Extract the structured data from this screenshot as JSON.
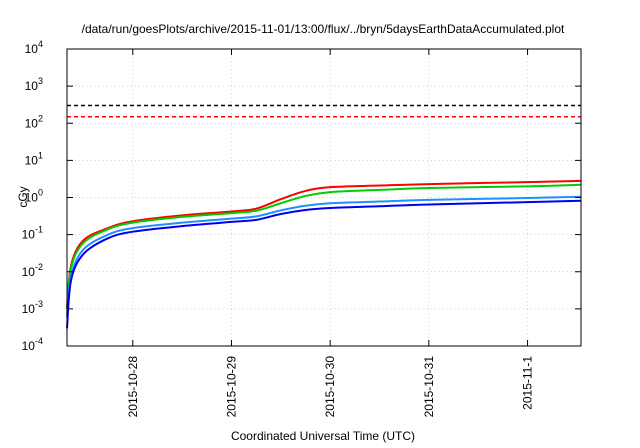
{
  "chart_data": {
    "type": "line",
    "title": "/data/run/goesPlots/archive/2015-11-01/13:00/flux/../bryn/5daysEarthDataAccumulated.plot",
    "xlabel": "Coordinated Universal Time (UTC)",
    "ylabel": "cGy",
    "yscale": "log",
    "ylim": [
      0.0001,
      10000
    ],
    "xlim": [
      "2015-10-27 08:00",
      "2015-11-01 13:00"
    ],
    "grid": true,
    "legend": "none",
    "y_ticks": [
      {
        "base": "10",
        "exp": "-4",
        "value": 0.0001
      },
      {
        "base": "10",
        "exp": "-3",
        "value": 0.001
      },
      {
        "base": "10",
        "exp": "-2",
        "value": 0.01
      },
      {
        "base": "10",
        "exp": "-1",
        "value": 0.1
      },
      {
        "base": "10",
        "exp": "0",
        "value": 1
      },
      {
        "base": "10",
        "exp": "1",
        "value": 10
      },
      {
        "base": "10",
        "exp": "2",
        "value": 100
      },
      {
        "base": "10",
        "exp": "3",
        "value": 1000
      },
      {
        "base": "10",
        "exp": "4",
        "value": 10000
      }
    ],
    "x_ticks": [
      {
        "label": "2015-10-28",
        "x": "2015-10-28 00:00"
      },
      {
        "label": "2015-10-29",
        "x": "2015-10-29 00:00"
      },
      {
        "label": "2015-10-30",
        "x": "2015-10-30 00:00"
      },
      {
        "label": "2015-10-31",
        "x": "2015-10-31 00:00"
      },
      {
        "label": "2015-11-1",
        "x": "2015-11-01 00:00"
      }
    ],
    "reference_lines": [
      {
        "y": 300,
        "color": "#000000",
        "style": "dashed"
      },
      {
        "y": 150,
        "color": "#ff0000",
        "style": "dashed"
      }
    ],
    "series": [
      {
        "color": "#ff0000",
        "x": [
          "2015-10-27 08:00",
          "2015-10-27 09:00",
          "2015-10-27 12:00",
          "2015-10-27 18:00",
          "2015-10-28 00:00",
          "2015-10-28 12:00",
          "2015-10-29 00:00",
          "2015-10-29 06:00",
          "2015-10-29 12:00",
          "2015-10-29 18:00",
          "2015-10-30 00:00",
          "2015-10-30 12:00",
          "2015-10-31 00:00",
          "2015-11-01 00:00",
          "2015-11-01 13:00"
        ],
        "y": [
          0.001,
          0.015,
          0.07,
          0.15,
          0.23,
          0.33,
          0.42,
          0.5,
          0.9,
          1.5,
          1.9,
          2.1,
          2.3,
          2.6,
          2.8
        ]
      },
      {
        "color": "#00cc00",
        "x": [
          "2015-10-27 08:00",
          "2015-10-27 09:00",
          "2015-10-27 12:00",
          "2015-10-27 18:00",
          "2015-10-28 00:00",
          "2015-10-28 12:00",
          "2015-10-29 00:00",
          "2015-10-29 06:00",
          "2015-10-29 12:00",
          "2015-10-29 18:00",
          "2015-10-30 00:00",
          "2015-10-30 12:00",
          "2015-10-31 00:00",
          "2015-11-01 00:00",
          "2015-11-01 13:00"
        ],
        "y": [
          0.001,
          0.013,
          0.06,
          0.14,
          0.21,
          0.3,
          0.38,
          0.44,
          0.7,
          1.1,
          1.4,
          1.6,
          1.8,
          2.0,
          2.2
        ]
      },
      {
        "color": "#1e90ff",
        "x": [
          "2015-10-27 08:00",
          "2015-10-27 09:00",
          "2015-10-27 12:00",
          "2015-10-27 18:00",
          "2015-10-28 00:00",
          "2015-10-28 12:00",
          "2015-10-29 00:00",
          "2015-10-29 06:00",
          "2015-10-29 12:00",
          "2015-10-29 18:00",
          "2015-10-30 00:00",
          "2015-10-30 12:00",
          "2015-10-31 00:00",
          "2015-11-01 00:00",
          "2015-11-01 13:00"
        ],
        "y": [
          0.0006,
          0.008,
          0.04,
          0.1,
          0.15,
          0.21,
          0.27,
          0.31,
          0.45,
          0.6,
          0.7,
          0.78,
          0.86,
          0.97,
          1.05
        ]
      },
      {
        "color": "#0000ee",
        "x": [
          "2015-10-27 08:00",
          "2015-10-27 09:00",
          "2015-10-27 12:00",
          "2015-10-27 18:00",
          "2015-10-28 00:00",
          "2015-10-28 12:00",
          "2015-10-29 00:00",
          "2015-10-29 06:00",
          "2015-10-29 12:00",
          "2015-10-29 18:00",
          "2015-10-30 00:00",
          "2015-10-30 12:00",
          "2015-10-31 00:00",
          "2015-11-01 00:00",
          "2015-11-01 13:00"
        ],
        "y": [
          0.0003,
          0.006,
          0.03,
          0.08,
          0.12,
          0.17,
          0.22,
          0.25,
          0.36,
          0.46,
          0.52,
          0.58,
          0.65,
          0.75,
          0.82
        ]
      }
    ]
  }
}
